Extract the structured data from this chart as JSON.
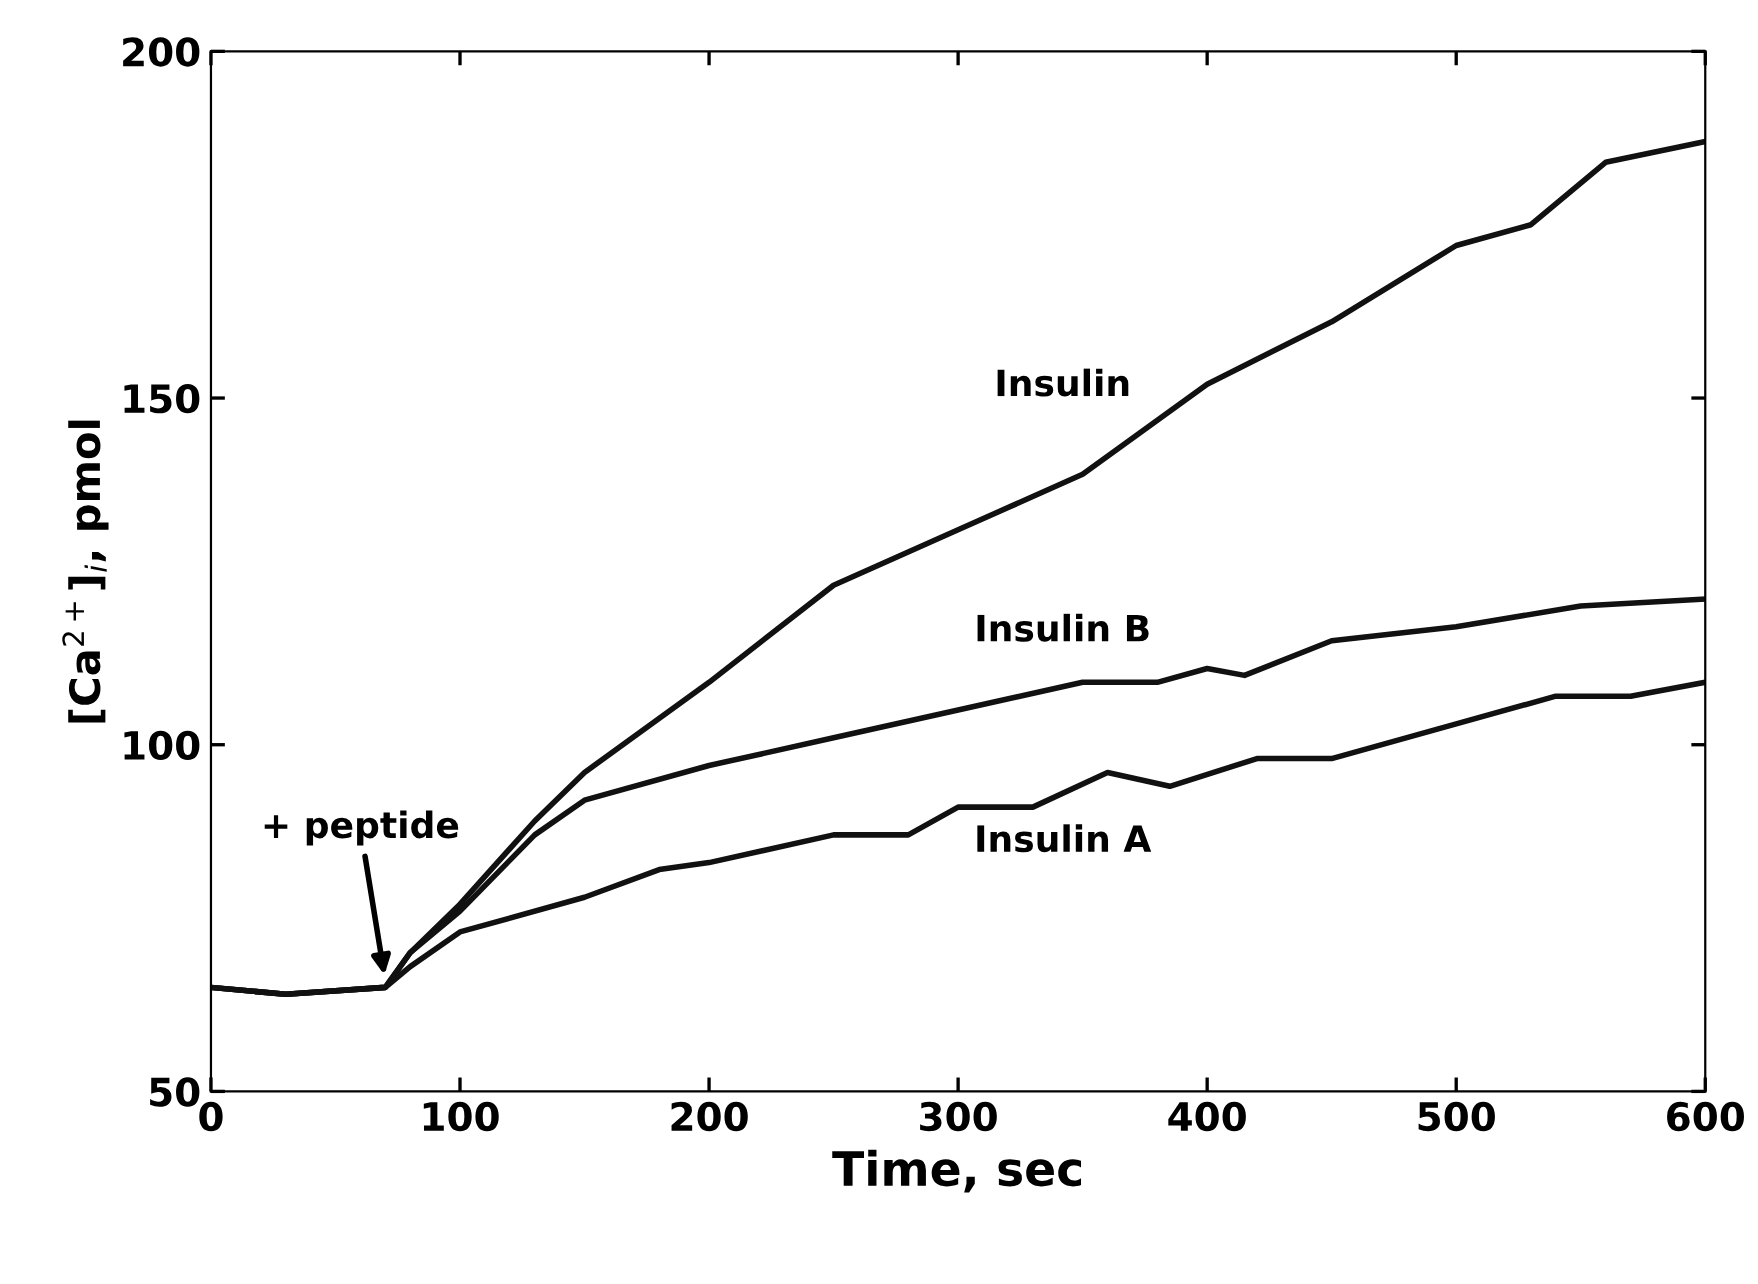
{
  "chart_data": {
    "type": "line",
    "xlabel": "Time, sec",
    "ylabel": "[Ca$^{2+}$]$_{i}$, pmol",
    "xlim": [
      0,
      600
    ],
    "ylim": [
      50,
      200
    ],
    "xticks": [
      0,
      100,
      200,
      300,
      400,
      500,
      600
    ],
    "yticks": [
      50,
      100,
      150,
      200
    ],
    "grid": false,
    "legend": false,
    "marker": "none",
    "line_style": "solid",
    "annotations": [
      {
        "text": "+ peptide",
        "x": 70,
        "y": 66
      }
    ],
    "series": [
      {
        "name": "Insulin",
        "color": "#111111",
        "x": [
          0,
          30,
          70,
          80,
          100,
          130,
          150,
          200,
          250,
          300,
          350,
          400,
          450,
          500,
          530,
          560,
          600
        ],
        "values": [
          65,
          64,
          65,
          70,
          77,
          89,
          96,
          109,
          123,
          131,
          139,
          152,
          161,
          172,
          175,
          184,
          187
        ]
      },
      {
        "name": "Insulin B",
        "color": "#111111",
        "x": [
          0,
          30,
          70,
          80,
          100,
          130,
          150,
          200,
          250,
          300,
          350,
          380,
          400,
          415,
          450,
          500,
          550,
          600
        ],
        "values": [
          65,
          64,
          65,
          70,
          76,
          87,
          92,
          97,
          101,
          105,
          109,
          109,
          111,
          110,
          115,
          117,
          120,
          121
        ]
      },
      {
        "name": "Insulin A",
        "color": "#111111",
        "x": [
          0,
          30,
          70,
          80,
          100,
          150,
          180,
          200,
          250,
          280,
          300,
          330,
          360,
          385,
          420,
          450,
          500,
          540,
          570,
          600
        ],
        "values": [
          65,
          64,
          65,
          68,
          73,
          78,
          82,
          83,
          87,
          87,
          91,
          91,
          96,
          94,
          98,
          98,
          103,
          107,
          107,
          109
        ]
      }
    ]
  }
}
